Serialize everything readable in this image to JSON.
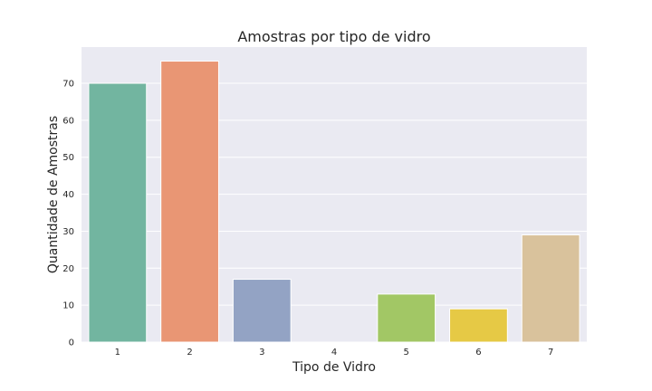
{
  "chart_data": {
    "type": "bar",
    "title": "Amostras por tipo de vidro",
    "xlabel": "Tipo de Vidro",
    "ylabel": "Quantidade de Amostras",
    "categories": [
      "1",
      "2",
      "3",
      "4",
      "5",
      "6",
      "7"
    ],
    "values": [
      70,
      76,
      17,
      0,
      13,
      9,
      29
    ],
    "ylim": [
      0,
      79.8
    ],
    "yticks": [
      0,
      10,
      20,
      30,
      40,
      50,
      60,
      70
    ],
    "grid": true,
    "legend": "none",
    "colors": [
      "#72b5a0",
      "#e99674",
      "#93a3c4",
      "#c8c8c8",
      "#a2c765",
      "#e6c945",
      "#d9c29c"
    ],
    "background": "#eaeaf2",
    "gridColor": "#ffffff"
  }
}
